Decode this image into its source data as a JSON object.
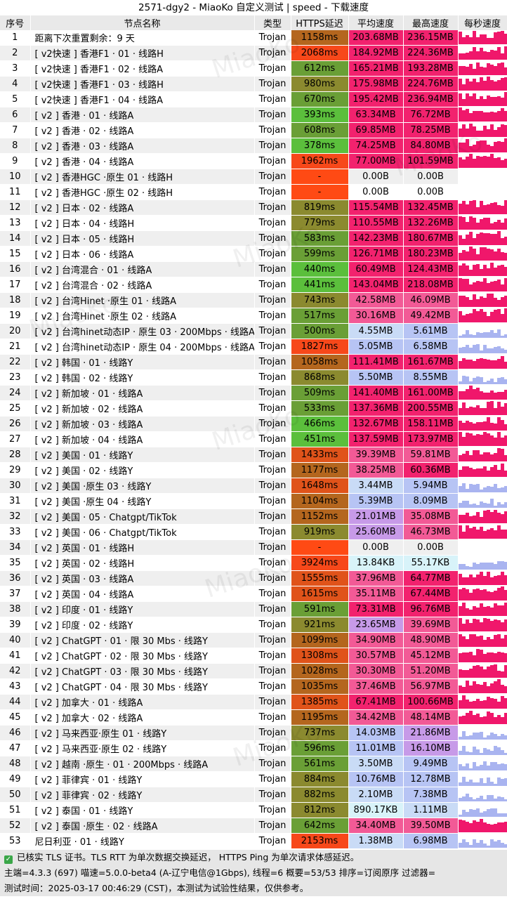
{
  "title": "2571-dgy2 - MiaoKo 自定义测试 | speed - 下载速度",
  "headers": [
    "序号",
    "节点名称",
    "类型",
    "HTTPS延迟",
    "平均速度",
    "最高速度",
    "每秒速度"
  ],
  "watermark": "MiaoKo",
  "colors": {
    "header_bg": "#e9e9e9",
    "footer_bg": "#e6e6e6",
    "check_green": "#3aa648",
    "graph_pink": "#f0176b",
    "graph_blue": "#a9b4f0"
  },
  "rows": [
    {
      "seq": "1",
      "name": "距离下次重置剩余：9 天",
      "type": "Trojan",
      "latency": "1158ms",
      "avg": "203.68MB",
      "max": "236.15MB"
    },
    {
      "seq": "2",
      "name": "[ v2快速 ] 香港F1 · 01 · 线路H",
      "type": "Trojan",
      "latency": "2068ms",
      "avg": "184.92MB",
      "max": "224.36MB"
    },
    {
      "seq": "3",
      "name": "[ v2快速 ] 香港F1 · 02 · 线路A",
      "type": "Trojan",
      "latency": "612ms",
      "avg": "165.21MB",
      "max": "193.28MB"
    },
    {
      "seq": "4",
      "name": "[ v2快速 ] 香港F1 · 03 · 线路H",
      "type": "Trojan",
      "latency": "980ms",
      "avg": "175.98MB",
      "max": "224.76MB"
    },
    {
      "seq": "5",
      "name": "[ v2快速 ] 香港F1 · 04 · 线路A",
      "type": "Trojan",
      "latency": "670ms",
      "avg": "195.42MB",
      "max": "236.94MB"
    },
    {
      "seq": "6",
      "name": "[ v2 ] 香港 · 01 · 线路A",
      "type": "Trojan",
      "latency": "393ms",
      "avg": "63.34MB",
      "max": "76.72MB"
    },
    {
      "seq": "7",
      "name": "[ v2 ] 香港 · 02 · 线路A",
      "type": "Trojan",
      "latency": "608ms",
      "avg": "69.85MB",
      "max": "78.25MB"
    },
    {
      "seq": "8",
      "name": "[ v2 ] 香港 · 03 · 线路A",
      "type": "Trojan",
      "latency": "378ms",
      "avg": "74.25MB",
      "max": "84.80MB"
    },
    {
      "seq": "9",
      "name": "[ v2 ] 香港 · 04 · 线路A",
      "type": "Trojan",
      "latency": "1962ms",
      "avg": "77.00MB",
      "max": "101.59MB"
    },
    {
      "seq": "10",
      "name": "[ v2 ] 香港HGC ·原生  01 · 线路H",
      "type": "Trojan",
      "latency": "-",
      "avg": "0.00B",
      "max": "0.00B"
    },
    {
      "seq": "11",
      "name": "[ v2 ] 香港HGC ·原生  02 · 线路H",
      "type": "Trojan",
      "latency": "-",
      "avg": "0.00B",
      "max": "0.00B"
    },
    {
      "seq": "12",
      "name": "[ v2 ] 日本 · 02 · 线路A",
      "type": "Trojan",
      "latency": "819ms",
      "avg": "115.54MB",
      "max": "132.45MB"
    },
    {
      "seq": "13",
      "name": "[ v2 ] 日本 · 04 · 线路H",
      "type": "Trojan",
      "latency": "779ms",
      "avg": "110.55MB",
      "max": "132.26MB"
    },
    {
      "seq": "14",
      "name": "[ v2 ] 日本 · 05 · 线路H",
      "type": "Trojan",
      "latency": "583ms",
      "avg": "142.23MB",
      "max": "180.67MB"
    },
    {
      "seq": "15",
      "name": "[ v2 ] 日本 · 06 · 线路A",
      "type": "Trojan",
      "latency": "599ms",
      "avg": "126.71MB",
      "max": "180.23MB"
    },
    {
      "seq": "16",
      "name": "[ v2 ] 台湾混合 · 01 · 线路A",
      "type": "Trojan",
      "latency": "440ms",
      "avg": "60.49MB",
      "max": "124.43MB"
    },
    {
      "seq": "17",
      "name": "[ v2 ] 台湾混合 · 02 · 线路A",
      "type": "Trojan",
      "latency": "441ms",
      "avg": "143.04MB",
      "max": "218.08MB"
    },
    {
      "seq": "18",
      "name": "[ v2 ] 台湾Hinet ·原生  01 · 线路A",
      "type": "Trojan",
      "latency": "743ms",
      "avg": "42.58MB",
      "max": "46.09MB"
    },
    {
      "seq": "19",
      "name": "[ v2 ] 台湾Hinet ·原生  02 · 线路A",
      "type": "Trojan",
      "latency": "517ms",
      "avg": "30.16MB",
      "max": "49.42MB"
    },
    {
      "seq": "20",
      "name": "[ v2 ] 台湾hinet动态IP · 原生 03 · 200Mbps · 线路A",
      "type": "Trojan",
      "latency": "500ms",
      "avg": "4.55MB",
      "max": "5.61MB"
    },
    {
      "seq": "21",
      "name": "[ v2 ] 台湾hinet动态IP · 原生 04 · 200Mbps · 线路A",
      "type": "Trojan",
      "latency": "1827ms",
      "avg": "5.05MB",
      "max": "6.58MB"
    },
    {
      "seq": "22",
      "name": "[ v2 ] 韩国 · 01 · 线路Y",
      "type": "Trojan",
      "latency": "1058ms",
      "avg": "111.41MB",
      "max": "161.67MB"
    },
    {
      "seq": "23",
      "name": "[ v2 ] 韩国 · 02 · 线路Y",
      "type": "Trojan",
      "latency": "868ms",
      "avg": "5.50MB",
      "max": "8.55MB"
    },
    {
      "seq": "24",
      "name": "[ v2 ] 新加坡 · 01 · 线路A",
      "type": "Trojan",
      "latency": "509ms",
      "avg": "141.40MB",
      "max": "161.00MB"
    },
    {
      "seq": "25",
      "name": "[ v2 ] 新加坡 · 02 · 线路A",
      "type": "Trojan",
      "latency": "533ms",
      "avg": "137.36MB",
      "max": "200.55MB"
    },
    {
      "seq": "26",
      "name": "[ v2 ] 新加坡 · 03 · 线路A",
      "type": "Trojan",
      "latency": "466ms",
      "avg": "132.67MB",
      "max": "158.11MB"
    },
    {
      "seq": "27",
      "name": "[ v2 ] 新加坡 · 04 · 线路A",
      "type": "Trojan",
      "latency": "451ms",
      "avg": "137.59MB",
      "max": "173.97MB"
    },
    {
      "seq": "28",
      "name": "[ v2 ] 美国 · 01 · 线路Y",
      "type": "Trojan",
      "latency": "1433ms",
      "avg": "39.39MB",
      "max": "59.81MB"
    },
    {
      "seq": "29",
      "name": "[ v2 ] 美国 · 02 · 线路Y",
      "type": "Trojan",
      "latency": "1177ms",
      "avg": "38.25MB",
      "max": "60.36MB"
    },
    {
      "seq": "30",
      "name": "[ v2 ] 美国 ·原生 03 · 线路Y",
      "type": "Trojan",
      "latency": "1648ms",
      "avg": "3.44MB",
      "max": "5.94MB"
    },
    {
      "seq": "31",
      "name": "[ v2 ] 美国 ·原生 04 · 线路Y",
      "type": "Trojan",
      "latency": "1104ms",
      "avg": "5.39MB",
      "max": "8.09MB"
    },
    {
      "seq": "32",
      "name": "[ v2 ] 美国 · 05 · Chatgpt/TikTok",
      "type": "Trojan",
      "latency": "1152ms",
      "avg": "21.01MB",
      "max": "35.08MB"
    },
    {
      "seq": "33",
      "name": "[ v2 ] 美国 · 06 · Chatgpt/TikTok",
      "type": "Trojan",
      "latency": "919ms",
      "avg": "25.60MB",
      "max": "46.73MB"
    },
    {
      "seq": "34",
      "name": "[ v2 ] 英国 · 01 · 线路H",
      "type": "Trojan",
      "latency": "-",
      "avg": "0.00B",
      "max": "0.00B"
    },
    {
      "seq": "35",
      "name": "[ v2 ] 英国 · 02 · 线路H",
      "type": "Trojan",
      "latency": "3924ms",
      "avg": "13.84KB",
      "max": "55.17KB"
    },
    {
      "seq": "36",
      "name": "[ v2 ] 英国 · 03 · 线路A",
      "type": "Trojan",
      "latency": "1555ms",
      "avg": "37.96MB",
      "max": "64.77MB"
    },
    {
      "seq": "37",
      "name": "[ v2 ] 英国 · 04 · 线路A",
      "type": "Trojan",
      "latency": "1615ms",
      "avg": "35.11MB",
      "max": "67.44MB"
    },
    {
      "seq": "38",
      "name": "[ v2 ] 印度 · 01 · 线路Y",
      "type": "Trojan",
      "latency": "591ms",
      "avg": "73.31MB",
      "max": "96.76MB"
    },
    {
      "seq": "39",
      "name": "[ v2 ] 印度 · 02 · 线路Y",
      "type": "Trojan",
      "latency": "921ms",
      "avg": "23.65MB",
      "max": "39.69MB"
    },
    {
      "seq": "40",
      "name": "[ v2 ] ChatGPT · 01 · 限 30 Mbs · 线路Y",
      "type": "Trojan",
      "latency": "1099ms",
      "avg": "34.90MB",
      "max": "48.90MB"
    },
    {
      "seq": "41",
      "name": "[ v2 ] ChatGPT · 02 · 限 30 Mbs · 线路Y",
      "type": "Trojan",
      "latency": "1308ms",
      "avg": "30.57MB",
      "max": "45.12MB"
    },
    {
      "seq": "42",
      "name": "[ v2 ] ChatGPT · 03 · 限 30 Mbs · 线路Y",
      "type": "Trojan",
      "latency": "1028ms",
      "avg": "30.30MB",
      "max": "51.20MB"
    },
    {
      "seq": "43",
      "name": "[ v2 ] ChatGPT · 04 · 限 30 Mbs · 线路Y",
      "type": "Trojan",
      "latency": "1035ms",
      "avg": "37.46MB",
      "max": "56.97MB"
    },
    {
      "seq": "44",
      "name": "[ v2 ] 加拿大 · 01 · 线路A",
      "type": "Trojan",
      "latency": "1385ms",
      "avg": "67.41MB",
      "max": "100.66MB"
    },
    {
      "seq": "45",
      "name": "[ v2 ] 加拿大 · 02 · 线路A",
      "type": "Trojan",
      "latency": "1195ms",
      "avg": "34.42MB",
      "max": "48.14MB"
    },
    {
      "seq": "46",
      "name": "[ v2 ] 马来西亚·原生  01 · 线路Y",
      "type": "Trojan",
      "latency": "737ms",
      "avg": "14.03MB",
      "max": "21.86MB"
    },
    {
      "seq": "47",
      "name": "[ v2 ] 马来西亚·原生  02 · 线路Y",
      "type": "Trojan",
      "latency": "596ms",
      "avg": "11.01MB",
      "max": "16.10MB"
    },
    {
      "seq": "48",
      "name": "[ v2 ] 越南 ·原生 · 01 · 200Mbps · 线路A",
      "type": "Trojan",
      "latency": "561ms",
      "avg": "3.50MB",
      "max": "9.49MB"
    },
    {
      "seq": "49",
      "name": "[ v2 ] 菲律宾 · 01 · 线路Y",
      "type": "Trojan",
      "latency": "884ms",
      "avg": "10.76MB",
      "max": "12.78MB"
    },
    {
      "seq": "50",
      "name": "[ v2 ] 菲律宾 · 02 · 线路Y",
      "type": "Trojan",
      "latency": "882ms",
      "avg": "2.10MB",
      "max": "7.38MB"
    },
    {
      "seq": "51",
      "name": "[ v2 ] 泰国 · 01 · 线路Y",
      "type": "Trojan",
      "latency": "812ms",
      "avg": "890.17KB",
      "max": "1.11MB"
    },
    {
      "seq": "52",
      "name": "[ v2 ] 泰国 ·原生 · 02 · 线路A",
      "type": "Trojan",
      "latency": "642ms",
      "avg": "34.40MB",
      "max": "39.50MB"
    },
    {
      "seq": "53",
      "name": "尼日利亚 · 01 · 线路Y",
      "type": "Trojan",
      "latency": "2153ms",
      "avg": "1.38MB",
      "max": "6.98MB"
    }
  ],
  "footer": {
    "line1": "已核实 TLS 证书。TLS RTT 为单次数据交换延迟，  HTTPS Ping 为单次请求体感延迟。",
    "line2": "主端=4.3.3 (697) 喵速=5.0.0-beta4 (A-辽宁电信@1Gbps), 线程=6 概要=53/53 排序=订阅原序 过滤器=",
    "line3": "测试时间：2025-03-17 00:46:29 (CST)，本测试为试验性结果，仅供参考。"
  }
}
